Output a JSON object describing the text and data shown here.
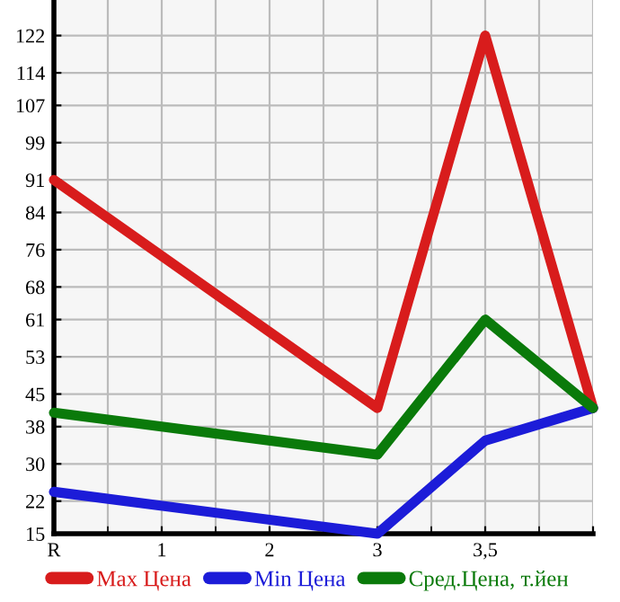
{
  "chart_data": {
    "type": "line",
    "categories": [
      "R",
      "1",
      "2",
      "3",
      "3,5",
      null
    ],
    "series": [
      {
        "name": "Max Цена",
        "color": "#d81c1c",
        "values": [
          91,
          null,
          null,
          42,
          122,
          42
        ]
      },
      {
        "name": "Min Цена",
        "color": "#1c1cd8",
        "values": [
          24,
          null,
          null,
          15,
          35,
          42
        ]
      },
      {
        "name": "Сред.Цена, т.йен",
        "color": "#0a7a0a",
        "values": [
          41,
          null,
          null,
          32,
          61,
          42
        ]
      }
    ],
    "ylim": [
      15,
      129.64
    ],
    "yticks": [
      15,
      22,
      30,
      38,
      45,
      53,
      61,
      68,
      76,
      84,
      91,
      99,
      107,
      114,
      122
    ],
    "grid": true,
    "legend": "bottom",
    "marker": "none",
    "line_style": "solid"
  }
}
